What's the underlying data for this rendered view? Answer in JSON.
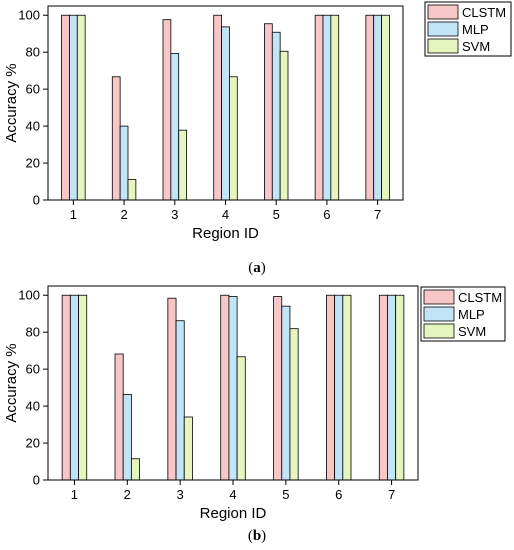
{
  "figure": {
    "caption_a_open": "(",
    "caption_a_letter": "a",
    "caption_a_close": ")",
    "caption_b_open": "(",
    "caption_b_letter": "b",
    "caption_b_close": ")"
  },
  "colors": {
    "CLSTM": "#f7c6c6",
    "MLP": "#c2e4f7",
    "SVM": "#e5f5bd"
  },
  "chart_data": [
    {
      "type": "bar",
      "panel": "a",
      "categories": [
        "1",
        "2",
        "3",
        "4",
        "5",
        "6",
        "7"
      ],
      "series": [
        {
          "name": "CLSTM",
          "values": [
            100,
            66.7,
            97.6,
            100,
            95.4,
            100,
            100
          ]
        },
        {
          "name": "MLP",
          "values": [
            100,
            40.0,
            79.3,
            93.7,
            90.8,
            100,
            100
          ]
        },
        {
          "name": "SVM",
          "values": [
            100,
            11.1,
            37.8,
            66.7,
            80.5,
            100,
            100
          ]
        }
      ],
      "xlabel": "Region ID",
      "ylabel": "Accuracy %",
      "ylim": [
        0,
        105
      ],
      "yticks": [
        0,
        20,
        40,
        60,
        80,
        100
      ],
      "grid": false,
      "legend": "top-right"
    },
    {
      "type": "bar",
      "panel": "b",
      "categories": [
        "1",
        "2",
        "3",
        "4",
        "5",
        "6",
        "7"
      ],
      "series": [
        {
          "name": "CLSTM",
          "values": [
            100,
            68.2,
            98.4,
            100,
            99.3,
            100,
            100
          ]
        },
        {
          "name": "MLP",
          "values": [
            100,
            46.3,
            86.2,
            99.3,
            94.1,
            100,
            100
          ]
        },
        {
          "name": "SVM",
          "values": [
            100,
            11.5,
            34.1,
            66.7,
            81.9,
            100,
            100
          ]
        }
      ],
      "xlabel": "Region ID",
      "ylabel": "Accuracy %",
      "ylim": [
        0,
        105
      ],
      "yticks": [
        0,
        20,
        40,
        60,
        80,
        100
      ],
      "grid": false,
      "legend": "top-right"
    }
  ]
}
